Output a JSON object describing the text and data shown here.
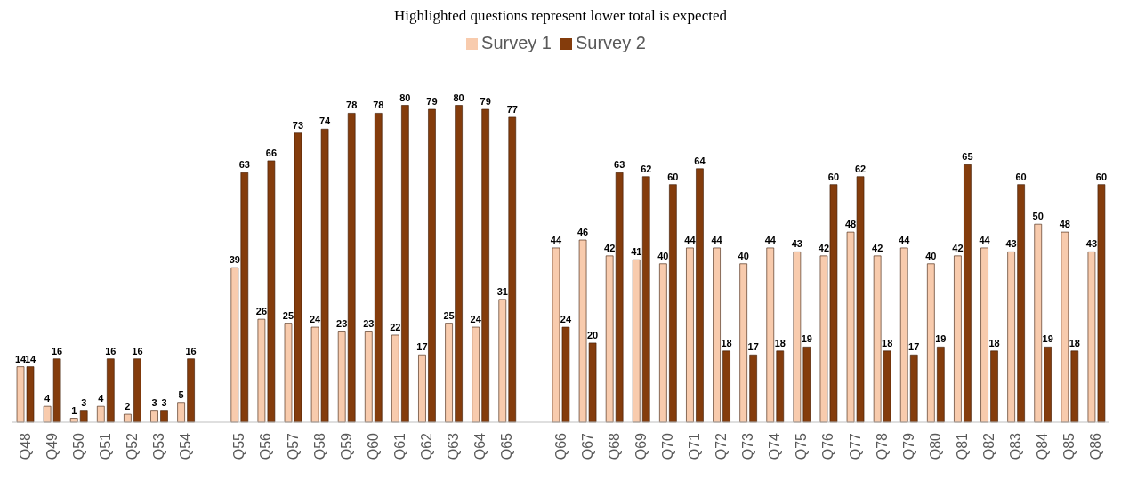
{
  "chart_data": {
    "type": "bar",
    "title": "Highlighted questions represent lower total is expected",
    "categories": [
      "Q48",
      "Q49",
      "Q50",
      "Q51",
      "Q52",
      "Q53",
      "Q54",
      null,
      "Q55",
      "Q56",
      "Q57",
      "Q58",
      "Q59",
      "Q60",
      "Q61",
      "Q62",
      "Q63",
      "Q64",
      "Q65",
      null,
      "Q66",
      "Q67",
      "Q68",
      "Q69",
      "Q70",
      "Q71",
      "Q72",
      "Q73",
      "Q74",
      "Q75",
      "Q76",
      "Q77",
      "Q78",
      "Q79",
      "Q80",
      "Q81",
      "Q82",
      "Q83",
      "Q84",
      "Q85",
      "Q86"
    ],
    "series": [
      {
        "name": "Survey 1",
        "color": "#f8cbad",
        "values": [
          14,
          4,
          1,
          4,
          2,
          3,
          5,
          null,
          39,
          26,
          25,
          24,
          23,
          23,
          22,
          17,
          25,
          24,
          31,
          null,
          44,
          46,
          42,
          41,
          40,
          44,
          44,
          40,
          44,
          43,
          42,
          48,
          42,
          44,
          40,
          42,
          44,
          43,
          50,
          48,
          43
        ]
      },
      {
        "name": "Survey 2",
        "color": "#843c0c",
        "values": [
          14,
          16,
          3,
          16,
          16,
          3,
          16,
          null,
          63,
          66,
          73,
          74,
          78,
          78,
          80,
          79,
          80,
          79,
          77,
          null,
          24,
          20,
          63,
          62,
          60,
          64,
          18,
          17,
          18,
          19,
          60,
          62,
          18,
          17,
          19,
          65,
          18,
          60,
          19,
          18,
          60
        ]
      }
    ],
    "data_labels": true,
    "legend": "top",
    "grid": false
  }
}
